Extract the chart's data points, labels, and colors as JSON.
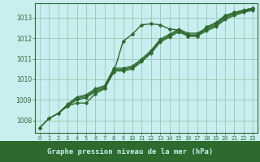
{
  "title": "Graphe pression niveau de la mer (hPa)",
  "bg_color": "#c8eef0",
  "grid_color": "#a0ccbb",
  "line_color": "#2d6a2d",
  "title_bg": "#2d6a2d",
  "title_fg": "#c8eef0",
  "xlim": [
    -0.5,
    23.5
  ],
  "ylim": [
    1007.4,
    1013.7
  ],
  "yticks": [
    1008,
    1009,
    1010,
    1011,
    1012,
    1013
  ],
  "xticks": [
    0,
    1,
    2,
    3,
    4,
    5,
    6,
    7,
    8,
    9,
    10,
    11,
    12,
    13,
    14,
    15,
    16,
    17,
    18,
    19,
    20,
    21,
    22,
    23
  ],
  "main_series": [
    1007.65,
    1008.1,
    1008.35,
    1008.7,
    1008.85,
    1008.85,
    1009.3,
    1009.55,
    1010.35,
    1011.85,
    1012.2,
    1012.65,
    1012.7,
    1012.65,
    1012.45,
    1012.4,
    1012.1,
    1012.1,
    1012.55,
    1012.75,
    1013.1,
    1013.25,
    1013.35,
    1013.45
  ],
  "series": [
    [
      1007.65,
      1008.1,
      1008.35,
      1008.7,
      1009.0,
      1009.1,
      1009.4,
      1009.55,
      1010.4,
      1010.4,
      1010.5,
      1010.85,
      1011.25,
      1011.8,
      1012.05,
      1012.3,
      1012.1,
      1012.1,
      1012.35,
      1012.55,
      1012.9,
      1013.1,
      1013.25,
      1013.35
    ],
    [
      1007.65,
      1008.1,
      1008.35,
      1008.7,
      1009.05,
      1009.15,
      1009.45,
      1009.6,
      1010.45,
      1010.45,
      1010.55,
      1010.9,
      1011.3,
      1011.85,
      1012.1,
      1012.35,
      1012.15,
      1012.15,
      1012.4,
      1012.6,
      1012.95,
      1013.15,
      1013.28,
      1013.38
    ],
    [
      1007.65,
      1008.1,
      1008.35,
      1008.75,
      1009.1,
      1009.2,
      1009.5,
      1009.65,
      1010.5,
      1010.5,
      1010.6,
      1010.95,
      1011.35,
      1011.9,
      1012.15,
      1012.4,
      1012.2,
      1012.2,
      1012.45,
      1012.65,
      1013.0,
      1013.2,
      1013.32,
      1013.42
    ],
    [
      1007.65,
      1008.1,
      1008.35,
      1008.8,
      1009.15,
      1009.25,
      1009.55,
      1009.7,
      1010.55,
      1010.55,
      1010.65,
      1011.0,
      1011.4,
      1011.95,
      1012.2,
      1012.45,
      1012.25,
      1012.25,
      1012.5,
      1012.7,
      1013.05,
      1013.25,
      1013.37,
      1013.47
    ]
  ]
}
